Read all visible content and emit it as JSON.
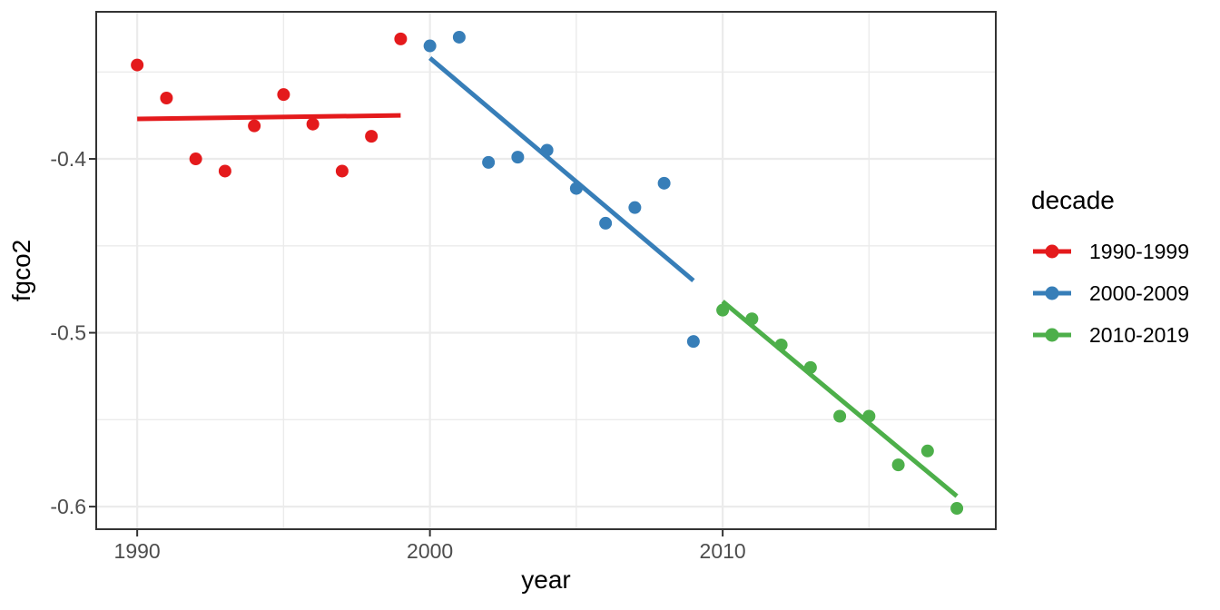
{
  "chart_data": {
    "type": "scatter",
    "title": "",
    "xlabel": "year",
    "ylabel": "fgco2",
    "legend_title": "decade",
    "legend_position": "right",
    "grid": true,
    "theme": "bw",
    "x_domain": [
      1988.6,
      2019.33
    ],
    "y_domain": [
      -0.613,
      -0.3154
    ],
    "x_ticks": [
      {
        "value": 1990,
        "label": "1990"
      },
      {
        "value": 2000,
        "label": "2000"
      },
      {
        "value": 2010,
        "label": "2010"
      }
    ],
    "x_minor_ticks": [
      1995,
      2005,
      2015
    ],
    "y_ticks": [
      {
        "value": -0.4,
        "label": "-0.4"
      },
      {
        "value": -0.5,
        "label": "-0.5"
      },
      {
        "value": -0.6,
        "label": "-0.6"
      }
    ],
    "y_minor_ticks": [
      -0.35,
      -0.45,
      -0.55
    ],
    "series": [
      {
        "name": "1990-1999",
        "color": "#E41A1C",
        "x": [
          1990,
          1991,
          1992,
          1993,
          1994,
          1995,
          1996,
          1997,
          1998,
          1999
        ],
        "y": [
          -0.346,
          -0.365,
          -0.4,
          -0.407,
          -0.381,
          -0.363,
          -0.38,
          -0.407,
          -0.387,
          -0.331
        ],
        "trend": {
          "x": [
            1990,
            1999
          ],
          "y": [
            -0.377,
            -0.375
          ]
        }
      },
      {
        "name": "2000-2009",
        "color": "#377EB8",
        "x": [
          2000,
          2001,
          2002,
          2003,
          2004,
          2005,
          2006,
          2007,
          2008,
          2009
        ],
        "y": [
          -0.335,
          -0.33,
          -0.402,
          -0.399,
          -0.395,
          -0.417,
          -0.437,
          -0.428,
          -0.414,
          -0.505
        ],
        "trend": {
          "x": [
            2000,
            2009
          ],
          "y": [
            -0.342,
            -0.47
          ]
        }
      },
      {
        "name": "2010-2019",
        "color": "#4DAF4A",
        "x": [
          2010,
          2011,
          2012,
          2013,
          2014,
          2015,
          2016,
          2017,
          2018
        ],
        "y": [
          -0.487,
          -0.492,
          -0.507,
          -0.52,
          -0.548,
          -0.548,
          -0.576,
          -0.568,
          -0.601
        ],
        "trend": {
          "x": [
            2010,
            2018
          ],
          "y": [
            -0.482,
            -0.594
          ]
        }
      }
    ],
    "colors": {
      "background": "#FFFFFF",
      "panel_background": "#FFFFFF",
      "grid": "#EBEBEB",
      "panel_border": "#333333",
      "tick_mark": "#333333",
      "tick_label": "#4D4D4D",
      "axis_title": "#000000"
    }
  }
}
